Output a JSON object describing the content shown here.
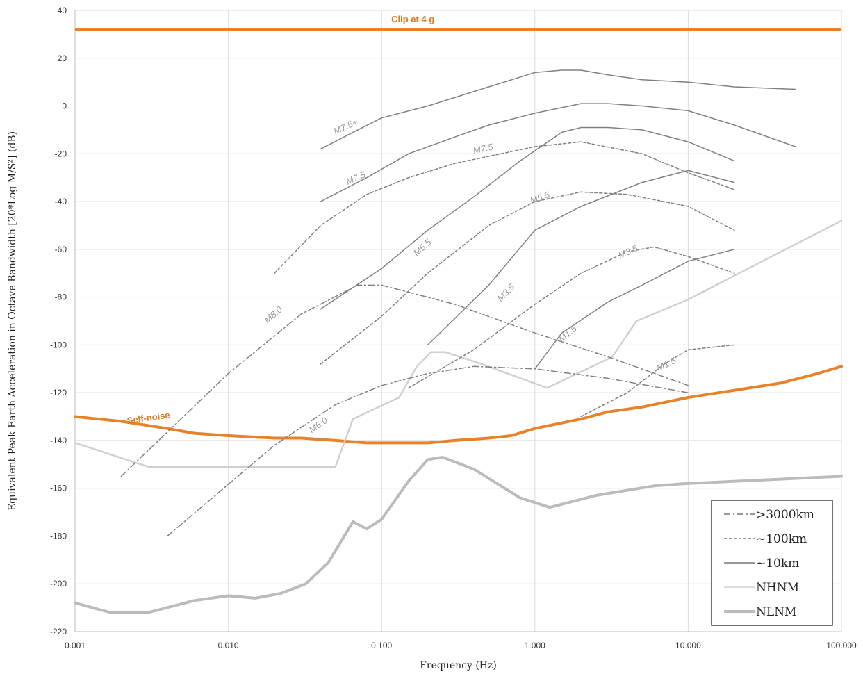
{
  "chart_data": {
    "type": "line",
    "x_scale": "log",
    "y_scale": "linear",
    "xlim": [
      0.001,
      100
    ],
    "ylim": [
      -220,
      40
    ],
    "xlabel": "Frequency (Hz)",
    "ylabel": "Equivalent Peak Earth Acceleration in Octave Bandwidth [20*Log M/S²] (dB)",
    "x_ticks": [
      0.001,
      0.01,
      0.1,
      1,
      10,
      100
    ],
    "x_tick_labels": [
      "0.001",
      "0.010",
      "0.100",
      "1.000",
      "10.000",
      "100.000"
    ],
    "y_ticks": [
      40,
      20,
      0,
      -20,
      -40,
      -60,
      -80,
      -100,
      -120,
      -140,
      -160,
      -180,
      -200,
      -220
    ],
    "y_tick_labels": [
      "40",
      "20",
      "0",
      "-20",
      "-40",
      "-60",
      "-80",
      "-100",
      "-120",
      "-140",
      "-160",
      "-180",
      "-200",
      "-220"
    ],
    "grid": {
      "vertical": true,
      "horizontal": true
    },
    "legend_position": "bottom-right",
    "legend": [
      {
        "label": ">3000km",
        "style": "dashdot",
        "color": "#777777"
      },
      {
        "label": "~100km",
        "style": "dashed",
        "color": "#777777"
      },
      {
        "label": "~10km",
        "style": "solid",
        "color": "#777777"
      },
      {
        "label": "NHNM",
        "style": "solid",
        "color": "#d0d0d0"
      },
      {
        "label": "NLNM",
        "style": "thick",
        "color": "#bbbbbb"
      }
    ],
    "reference_lines": [
      {
        "label": "Clip at 4 g",
        "y": 32,
        "color": "#e8822a"
      }
    ],
    "series": [
      {
        "name": "Self-noise",
        "style": "orange",
        "color": "#e8822a",
        "points": [
          [
            0.001,
            -130
          ],
          [
            0.002,
            -132
          ],
          [
            0.004,
            -135
          ],
          [
            0.006,
            -137
          ],
          [
            0.01,
            -138
          ],
          [
            0.02,
            -139
          ],
          [
            0.03,
            -139
          ],
          [
            0.05,
            -140
          ],
          [
            0.08,
            -141
          ],
          [
            0.1,
            -141
          ],
          [
            0.2,
            -141
          ],
          [
            0.3,
            -140
          ],
          [
            0.5,
            -139
          ],
          [
            0.7,
            -138
          ],
          [
            1,
            -135
          ],
          [
            2,
            -131
          ],
          [
            3,
            -128
          ],
          [
            5,
            -126
          ],
          [
            10,
            -122
          ],
          [
            20,
            -119
          ],
          [
            40,
            -116
          ],
          [
            70,
            -112
          ],
          [
            100,
            -109
          ]
        ]
      },
      {
        "name": "NHNM",
        "style": "nhnm",
        "color": "#d0d0d0",
        "points": [
          [
            0.001,
            -141
          ],
          [
            0.003,
            -151
          ],
          [
            0.05,
            -151
          ],
          [
            0.065,
            -131
          ],
          [
            0.13,
            -122
          ],
          [
            0.17,
            -109
          ],
          [
            0.21,
            -103
          ],
          [
            0.26,
            -103
          ],
          [
            0.45,
            -108
          ],
          [
            1.2,
            -118
          ],
          [
            3.2,
            -105
          ],
          [
            4.6,
            -90
          ],
          [
            10,
            -81
          ],
          [
            20,
            -71
          ],
          [
            100,
            -48
          ]
        ]
      },
      {
        "name": "NLNM",
        "style": "nlnm",
        "color": "#bbbbbb",
        "points": [
          [
            0.001,
            -208
          ],
          [
            0.0017,
            -212
          ],
          [
            0.003,
            -212
          ],
          [
            0.006,
            -207
          ],
          [
            0.01,
            -205
          ],
          [
            0.015,
            -206
          ],
          [
            0.022,
            -204
          ],
          [
            0.032,
            -200
          ],
          [
            0.045,
            -191
          ],
          [
            0.065,
            -174
          ],
          [
            0.08,
            -177
          ],
          [
            0.1,
            -173
          ],
          [
            0.15,
            -157
          ],
          [
            0.2,
            -148
          ],
          [
            0.25,
            -147
          ],
          [
            0.4,
            -152
          ],
          [
            0.8,
            -164
          ],
          [
            1.25,
            -168
          ],
          [
            2.5,
            -163
          ],
          [
            6,
            -159
          ],
          [
            10,
            -158
          ],
          [
            100,
            -155
          ]
        ]
      },
      {
        "label": "M7.5+",
        "style": "solid",
        "color": "#808080",
        "points": [
          [
            0.04,
            -18
          ],
          [
            0.07,
            -10
          ],
          [
            0.1,
            -5
          ],
          [
            0.2,
            0
          ],
          [
            0.5,
            8
          ],
          [
            1,
            14
          ],
          [
            1.5,
            15
          ],
          [
            2,
            15
          ],
          [
            3,
            13
          ],
          [
            5,
            11
          ],
          [
            10,
            10
          ],
          [
            20,
            8
          ],
          [
            50,
            7
          ]
        ]
      },
      {
        "label": "M7.5",
        "style": "solid",
        "color": "#808080",
        "points": [
          [
            0.04,
            -40
          ],
          [
            0.08,
            -30
          ],
          [
            0.15,
            -20
          ],
          [
            0.3,
            -13
          ],
          [
            0.5,
            -8
          ],
          [
            1,
            -3
          ],
          [
            2,
            1
          ],
          [
            3,
            1
          ],
          [
            5,
            0
          ],
          [
            10,
            -2
          ],
          [
            20,
            -8
          ],
          [
            50,
            -17
          ]
        ]
      },
      {
        "label": "M5.5",
        "style": "solid",
        "color": "#808080",
        "points": [
          [
            0.04,
            -85
          ],
          [
            0.1,
            -68
          ],
          [
            0.2,
            -52
          ],
          [
            0.4,
            -38
          ],
          [
            0.8,
            -23
          ],
          [
            1.5,
            -11
          ],
          [
            2,
            -9
          ],
          [
            3,
            -9
          ],
          [
            5,
            -10
          ],
          [
            10,
            -15
          ],
          [
            20,
            -23
          ]
        ]
      },
      {
        "label": "M3.5",
        "style": "solid",
        "color": "#808080",
        "points": [
          [
            0.2,
            -100
          ],
          [
            0.5,
            -75
          ],
          [
            1,
            -52
          ],
          [
            2,
            -42
          ],
          [
            5,
            -32
          ],
          [
            10,
            -27
          ],
          [
            20,
            -32
          ]
        ]
      },
      {
        "label": "M1.5",
        "style": "solid",
        "color": "#808080",
        "points": [
          [
            1,
            -110
          ],
          [
            1.5,
            -95
          ],
          [
            3,
            -82
          ],
          [
            5,
            -75
          ],
          [
            10,
            -65
          ],
          [
            20,
            -60
          ]
        ]
      },
      {
        "label": "M7.5",
        "style": "dashed",
        "color": "#808080",
        "points": [
          [
            0.02,
            -70
          ],
          [
            0.04,
            -50
          ],
          [
            0.08,
            -37
          ],
          [
            0.15,
            -30
          ],
          [
            0.3,
            -24
          ],
          [
            0.6,
            -20
          ],
          [
            1,
            -17
          ],
          [
            2,
            -15
          ],
          [
            5,
            -20
          ],
          [
            10,
            -28
          ],
          [
            20,
            -35
          ]
        ]
      },
      {
        "label": "M5.5",
        "style": "dashed",
        "color": "#808080",
        "points": [
          [
            0.04,
            -108
          ],
          [
            0.1,
            -88
          ],
          [
            0.2,
            -70
          ],
          [
            0.5,
            -50
          ],
          [
            1,
            -40
          ],
          [
            2,
            -36
          ],
          [
            4,
            -37
          ],
          [
            10,
            -42
          ],
          [
            20,
            -52
          ]
        ]
      },
      {
        "label": "M3.5",
        "style": "dashed",
        "color": "#808080",
        "points": [
          [
            0.15,
            -118
          ],
          [
            0.4,
            -102
          ],
          [
            1,
            -83
          ],
          [
            2,
            -70
          ],
          [
            4,
            -61
          ],
          [
            6,
            -59
          ],
          [
            10,
            -63
          ],
          [
            20,
            -70
          ]
        ]
      },
      {
        "label": "M1.5",
        "style": "dashed",
        "color": "#808080",
        "points": [
          [
            2,
            -130
          ],
          [
            4,
            -120
          ],
          [
            7,
            -108
          ],
          [
            10,
            -102
          ],
          [
            20,
            -100
          ]
        ]
      },
      {
        "label": "M8.0",
        "style": "dashdot",
        "color": "#808080",
        "points": [
          [
            0.002,
            -155
          ],
          [
            0.01,
            -112
          ],
          [
            0.03,
            -87
          ],
          [
            0.07,
            -75
          ],
          [
            0.1,
            -75
          ],
          [
            0.3,
            -83
          ],
          [
            1,
            -95
          ],
          [
            3,
            -105
          ],
          [
            10,
            -117
          ]
        ]
      },
      {
        "label": "M6.0",
        "style": "dashdot",
        "color": "#808080",
        "points": [
          [
            0.004,
            -180
          ],
          [
            0.02,
            -142
          ],
          [
            0.05,
            -125
          ],
          [
            0.1,
            -117
          ],
          [
            0.2,
            -112
          ],
          [
            0.4,
            -109
          ],
          [
            1,
            -110
          ],
          [
            3,
            -114
          ],
          [
            10,
            -120
          ]
        ]
      }
    ],
    "curve_labels": [
      {
        "text": "M7.5+",
        "x": 0.05,
        "y": -12,
        "angle": -25
      },
      {
        "text": "M7.5",
        "x": 0.06,
        "y": -33,
        "angle": -23
      },
      {
        "text": "M7.5",
        "x": 0.4,
        "y": -20,
        "angle": -12
      },
      {
        "text": "M5.5",
        "x": 0.17,
        "y": -63,
        "angle": -42
      },
      {
        "text": "M5.5",
        "x": 0.95,
        "y": -41,
        "angle": -20
      },
      {
        "text": "M3.5",
        "x": 0.6,
        "y": -82,
        "angle": -45
      },
      {
        "text": "M3.5",
        "x": 3.6,
        "y": -64,
        "angle": -25
      },
      {
        "text": "M1.5",
        "x": 1.5,
        "y": -99,
        "angle": -40
      },
      {
        "text": "M1.5",
        "x": 6.4,
        "y": -111,
        "angle": -25
      },
      {
        "text": "M8.0",
        "x": 0.018,
        "y": -91,
        "angle": -40
      },
      {
        "text": "M6.0",
        "x": 0.035,
        "y": -137,
        "angle": -35
      },
      {
        "text": "Self-noise",
        "x": 0.0022,
        "y": -133,
        "angle": -8,
        "orange": true
      },
      {
        "text": "Clip at 4 g",
        "x": 0.16,
        "y": 35,
        "angle": 0,
        "orange": true,
        "center": true
      }
    ]
  }
}
